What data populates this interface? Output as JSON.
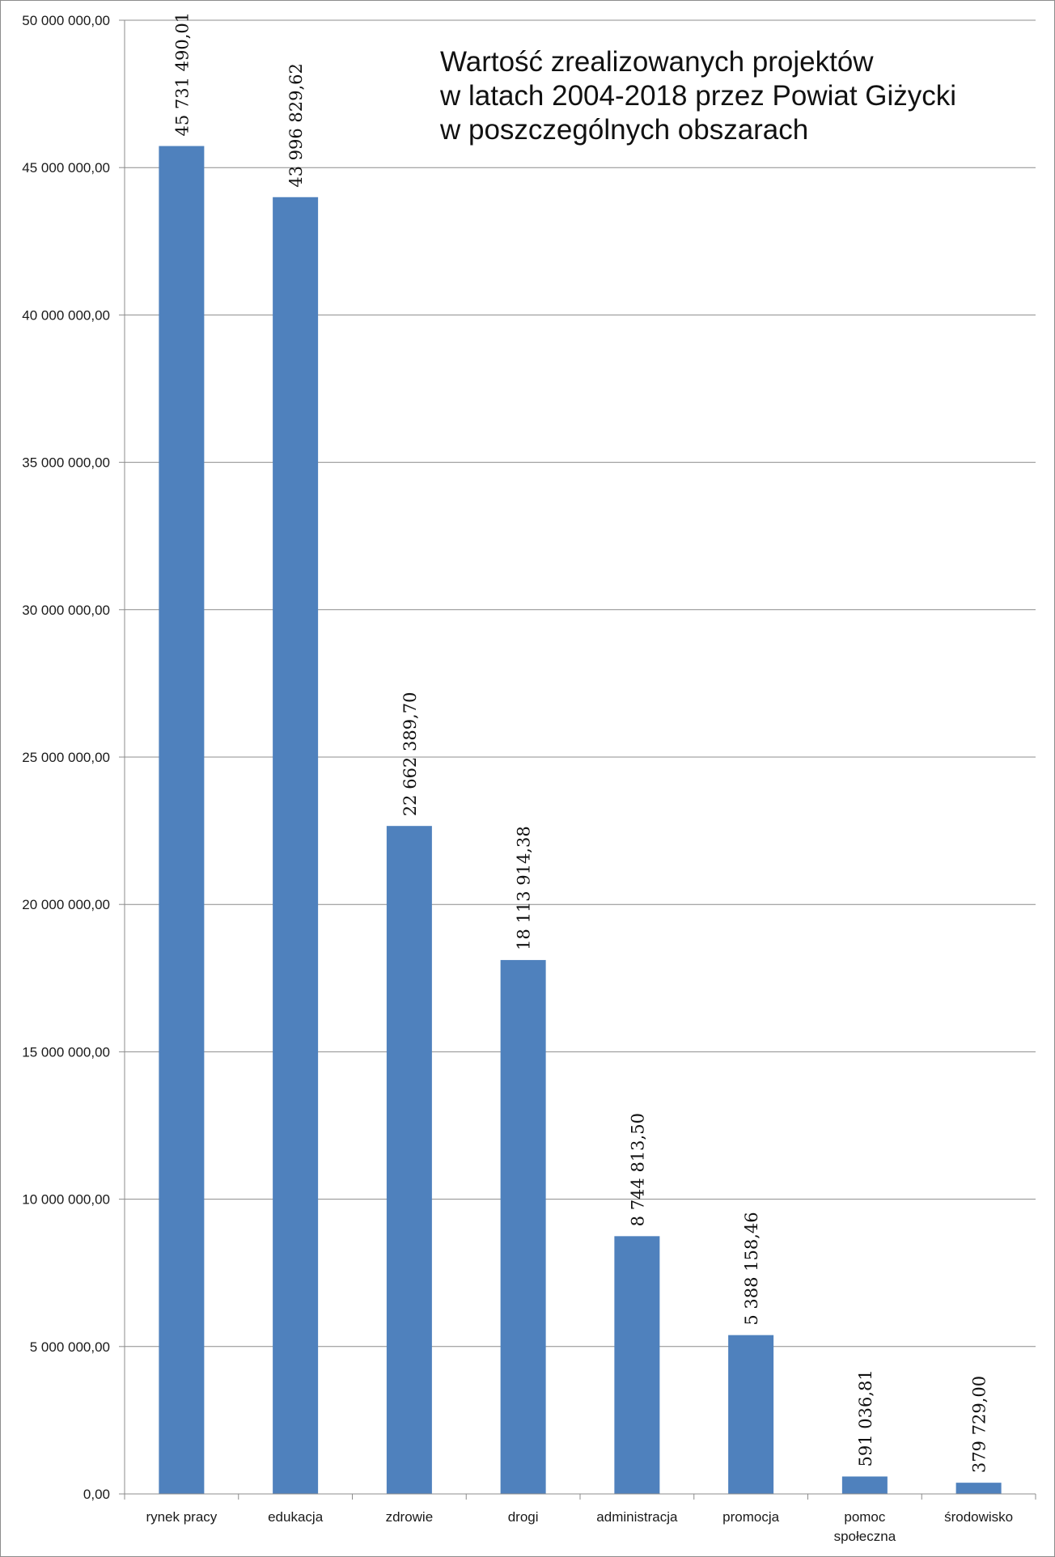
{
  "chart_data": {
    "type": "bar",
    "title_lines": [
      "Wartość zrealizowanych projektów",
      "w latach 2004-2018 przez Powiat Giżycki",
      "w poszczególnych obszarach"
    ],
    "categories": [
      [
        "rynek pracy"
      ],
      [
        "edukacja"
      ],
      [
        "zdrowie"
      ],
      [
        "drogi"
      ],
      [
        "administracja"
      ],
      [
        "promocja"
      ],
      [
        "pomoc",
        "społeczna"
      ],
      [
        "środowisko"
      ]
    ],
    "values": [
      45731490.01,
      43996829.62,
      22662389.7,
      18113914.38,
      8744813.5,
      5388158.46,
      591036.81,
      379729.0
    ],
    "data_labels": [
      "45 731 490,01",
      "43 996 829,62",
      "22 662 389,70",
      "18 113 914,38",
      "8 744 813,50",
      "5 388 158,46",
      "591 036,81",
      "379 729,00"
    ],
    "ylim": [
      0,
      50000000
    ],
    "y_ticks": [
      0,
      5000000,
      10000000,
      15000000,
      20000000,
      25000000,
      30000000,
      35000000,
      40000000,
      45000000,
      50000000
    ],
    "y_tick_labels": [
      "0,00",
      "5 000 000,00",
      "10 000 000,00",
      "15 000 000,00",
      "20 000 000,00",
      "25 000 000,00",
      "30 000 000,00",
      "35 000 000,00",
      "40 000 000,00",
      "45 000 000,00",
      "50 000 000,00"
    ],
    "grid": true,
    "bar_color": "#4f81bd",
    "gridline_color": "#8c8c8c"
  }
}
